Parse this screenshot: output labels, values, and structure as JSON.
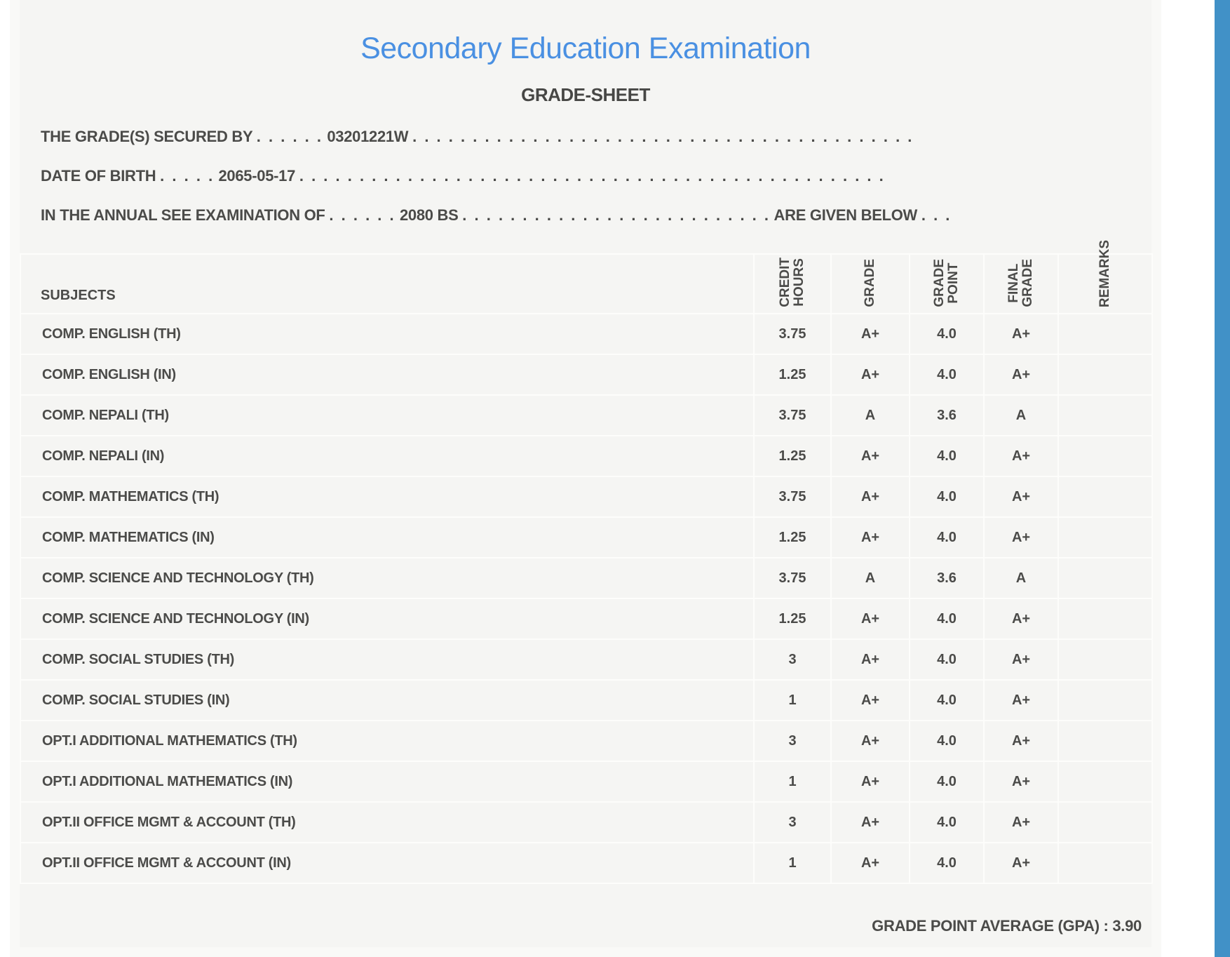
{
  "page": {
    "title": "Secondary Education Examination",
    "subtitle": "GRADE-SHEET"
  },
  "student_lines": {
    "line1": {
      "label": "THE GRADE(S) SECURED BY",
      "pre_dots": ". . . . . .",
      "value": "03201221W",
      "post_dots": ". . . . . . . . . . . . . . . . . . . . . . . . . . . . . . . . . . . . . . . . . ."
    },
    "line2": {
      "label": "DATE OF BIRTH",
      "pre_dots": ". . . . .",
      "value": "2065-05-17",
      "post_dots": ". . . . . . . . . . . . . . . . . . . . . . . . . . . . . . . . . . . . . . . . . . . . . . . . ."
    },
    "line3": {
      "label": "IN THE ANNUAL SEE EXAMINATION OF",
      "pre_dots": ". . . . . .",
      "value": "2080 BS",
      "mid_dots": ". . . . . . . . . . . . . . . . . . . . . . . . . .",
      "label2": "ARE GIVEN BELOW",
      "post_dots": ". . ."
    }
  },
  "table": {
    "columns": [
      {
        "id": "subjects",
        "label": "SUBJECTS"
      },
      {
        "id": "credit_hours",
        "lines": [
          "CREDIT",
          "HOURS"
        ]
      },
      {
        "id": "grade",
        "lines": [
          "GRADE"
        ]
      },
      {
        "id": "grade_point",
        "lines": [
          "GRADE",
          "POINT"
        ]
      },
      {
        "id": "final_grade",
        "lines": [
          "FINAL",
          "GRADE"
        ]
      },
      {
        "id": "remarks",
        "lines": [
          "REMARKS"
        ]
      }
    ],
    "rows": [
      {
        "subject": "COMP. ENGLISH (TH)",
        "credit_hours": "3.75",
        "grade": "A+",
        "grade_point": "4.0",
        "final_grade": "A+",
        "remarks": ""
      },
      {
        "subject": "COMP. ENGLISH (IN)",
        "credit_hours": "1.25",
        "grade": "A+",
        "grade_point": "4.0",
        "final_grade": "A+",
        "remarks": ""
      },
      {
        "subject": "COMP. NEPALI (TH)",
        "credit_hours": "3.75",
        "grade": "A",
        "grade_point": "3.6",
        "final_grade": "A",
        "remarks": ""
      },
      {
        "subject": "COMP. NEPALI (IN)",
        "credit_hours": "1.25",
        "grade": "A+",
        "grade_point": "4.0",
        "final_grade": "A+",
        "remarks": ""
      },
      {
        "subject": "COMP. MATHEMATICS (TH)",
        "credit_hours": "3.75",
        "grade": "A+",
        "grade_point": "4.0",
        "final_grade": "A+",
        "remarks": ""
      },
      {
        "subject": "COMP. MATHEMATICS (IN)",
        "credit_hours": "1.25",
        "grade": "A+",
        "grade_point": "4.0",
        "final_grade": "A+",
        "remarks": ""
      },
      {
        "subject": "COMP. SCIENCE AND TECHNOLOGY (TH)",
        "credit_hours": "3.75",
        "grade": "A",
        "grade_point": "3.6",
        "final_grade": "A",
        "remarks": ""
      },
      {
        "subject": "COMP. SCIENCE AND TECHNOLOGY (IN)",
        "credit_hours": "1.25",
        "grade": "A+",
        "grade_point": "4.0",
        "final_grade": "A+",
        "remarks": ""
      },
      {
        "subject": "COMP. SOCIAL STUDIES (TH)",
        "credit_hours": "3",
        "grade": "A+",
        "grade_point": "4.0",
        "final_grade": "A+",
        "remarks": ""
      },
      {
        "subject": "COMP. SOCIAL STUDIES (IN)",
        "credit_hours": "1",
        "grade": "A+",
        "grade_point": "4.0",
        "final_grade": "A+",
        "remarks": ""
      },
      {
        "subject": "OPT.I ADDITIONAL MATHEMATICS (TH)",
        "credit_hours": "3",
        "grade": "A+",
        "grade_point": "4.0",
        "final_grade": "A+",
        "remarks": ""
      },
      {
        "subject": "OPT.I ADDITIONAL MATHEMATICS (IN)",
        "credit_hours": "1",
        "grade": "A+",
        "grade_point": "4.0",
        "final_grade": "A+",
        "remarks": ""
      },
      {
        "subject": "OPT.II OFFICE MGMT & ACCOUNT (TH)",
        "credit_hours": "3",
        "grade": "A+",
        "grade_point": "4.0",
        "final_grade": "A+",
        "remarks": ""
      },
      {
        "subject": "OPT.II OFFICE MGMT & ACCOUNT (IN)",
        "credit_hours": "1",
        "grade": "A+",
        "grade_point": "4.0",
        "final_grade": "A+",
        "remarks": ""
      }
    ]
  },
  "summary": {
    "gpa_label": "GRADE POINT AVERAGE (GPA) :",
    "gpa_value": "3.90"
  },
  "colors": {
    "title_blue": "#4a90e2",
    "scrollbar_blue": "#4191c7",
    "text_gray": "#4b4b49",
    "panel_bg": "#f5f5f3"
  }
}
